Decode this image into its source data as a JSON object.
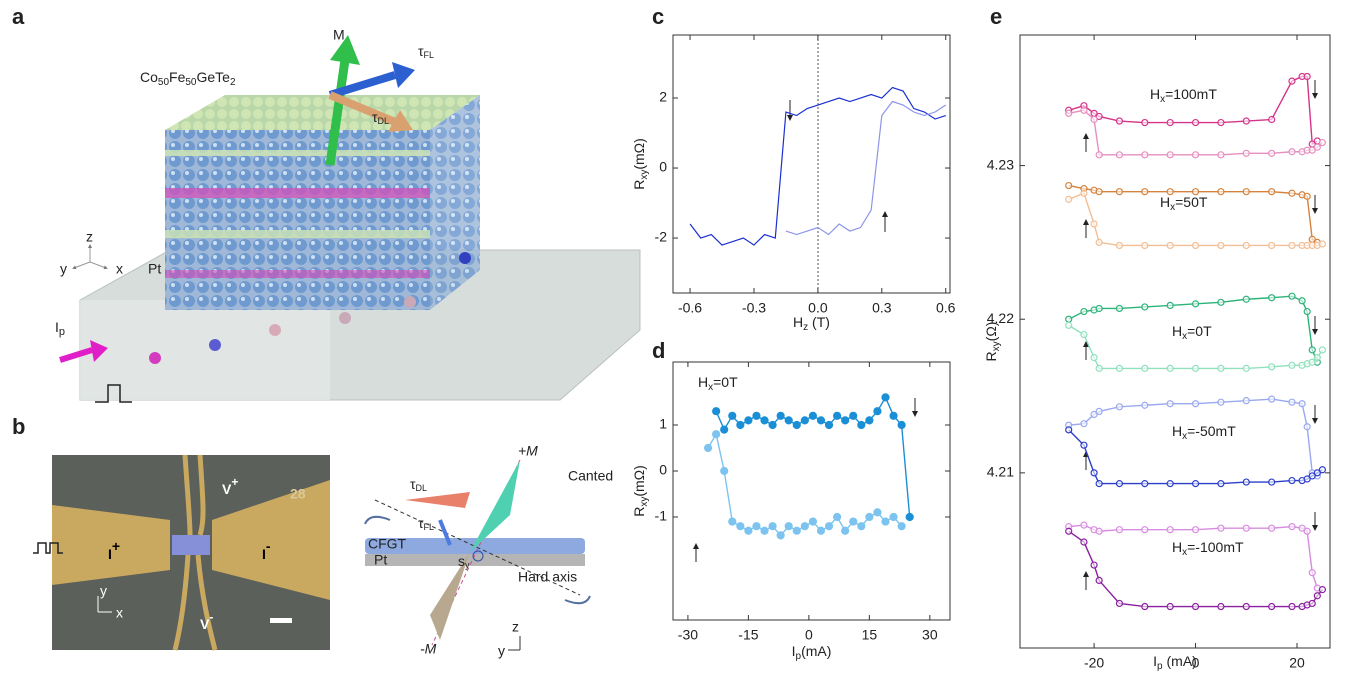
{
  "panel_labels": [
    "a",
    "b",
    "c",
    "d",
    "e"
  ],
  "panel_a": {
    "m": "M",
    "tau_fl": {
      "main": "τ",
      "sub": "FL"
    },
    "tau_dl": {
      "main": "τ",
      "sub": "DL"
    },
    "material": [
      "Co",
      "50",
      "Fe",
      "50",
      "GeTe",
      "2"
    ],
    "pt": "Pt",
    "axes": [
      "z",
      "y",
      "x"
    ],
    "current": {
      "main": "I",
      "sub": "p"
    }
  },
  "panel_b": {
    "device": {
      "v_plus": [
        "V",
        "+"
      ],
      "v_minus": [
        "V",
        "-"
      ],
      "i_plus": [
        "I",
        "+"
      ],
      "i_minus": [
        "I",
        "-"
      ],
      "number": "28",
      "axes": [
        "y",
        "x"
      ]
    },
    "schematic": {
      "plus_m": "+M",
      "canted": "Canted",
      "tau_dl": {
        "main": "τ",
        "sub": "DL"
      },
      "tau_fl": {
        "main": "τ",
        "sub": "FL"
      },
      "cfgt": "CFGT",
      "pt": "Pt",
      "s_y": {
        "main": "s",
        "sub": "y"
      },
      "hard_axis": "Hard axis",
      "minus_m": "-M",
      "axes": [
        "z",
        "y"
      ]
    }
  },
  "chart_data": [
    {
      "type": "line",
      "xlabel": {
        "main": "H",
        "sub": "z",
        "rest": " (T)"
      },
      "ylabel": {
        "main": "R",
        "sub": "xy",
        "rest": "(mΩ)"
      },
      "x": [
        -0.6,
        -0.55,
        -0.5,
        -0.45,
        -0.4,
        -0.35,
        -0.3,
        -0.25,
        -0.2,
        -0.15,
        -0.1,
        -0.05,
        0,
        0.05,
        0.1,
        0.15,
        0.2,
        0.25,
        0.3,
        0.35,
        0.4,
        0.45,
        0.5,
        0.55,
        0.6
      ],
      "series": [
        {
          "color": "#1b2fd2",
          "values": [
            -1.6,
            -2.0,
            -1.9,
            -2.2,
            -2.1,
            -2.0,
            -2.2,
            -1.9,
            -2.0,
            1.6,
            1.5,
            1.7,
            1.8,
            1.9,
            2.0,
            1.9,
            2.0,
            2.1,
            2.0,
            2.3,
            2.2,
            1.7,
            1.6,
            1.4,
            1.5
          ]
        },
        {
          "color": "#8c95ea",
          "values": [
            null,
            null,
            null,
            null,
            null,
            null,
            null,
            null,
            null,
            -1.8,
            -1.9,
            -1.8,
            -1.7,
            -1.9,
            -1.6,
            -1.8,
            -1.7,
            -1.2,
            1.5,
            1.9,
            1.8,
            1.6,
            1.5,
            1.6,
            1.8
          ]
        }
      ],
      "xlim": [
        -0.68,
        0.62
      ],
      "ylim": [
        -3.57,
        3.8
      ],
      "xticks": [
        -0.6,
        -0.3,
        {
          "value": 0,
          "label": "0.0"
        },
        0.3,
        0.6
      ],
      "yticks": [
        -2,
        0,
        2
      ]
    },
    {
      "type": "line",
      "marker": "filled-circle",
      "xlabel": {
        "main": "I",
        "sub": "p",
        "rest": "(mA)"
      },
      "ylabel": {
        "main": "R",
        "sub": "xy",
        "rest": "(mΩ)"
      },
      "annotations": [
        {
          "main": "H",
          "sub": "x",
          "rest": "=0T"
        }
      ],
      "x": [
        -25,
        -23,
        -21,
        -19,
        -17,
        -15,
        -13,
        -11,
        -9,
        -7,
        -5,
        -3,
        -1,
        1,
        3,
        5,
        7,
        9,
        11,
        13,
        15,
        17,
        19,
        21,
        23,
        25
      ],
      "series": [
        {
          "color": "#1a8fd6",
          "values": [
            null,
            1.3,
            0.9,
            1.2,
            1.0,
            1.1,
            1.2,
            1.1,
            1.0,
            1.2,
            1.1,
            1.0,
            1.1,
            1.2,
            1.1,
            1.0,
            1.2,
            1.1,
            1.2,
            1.0,
            1.1,
            1.3,
            1.6,
            1.2,
            1.0,
            -1.0
          ]
        },
        {
          "color": "#7cc4ef",
          "values": [
            0.5,
            0.8,
            0.0,
            -1.1,
            -1.2,
            -1.3,
            -1.2,
            -1.3,
            -1.2,
            -1.4,
            -1.2,
            -1.3,
            -1.2,
            -1.1,
            -1.3,
            -1.2,
            -1.0,
            -1.3,
            -1.1,
            -1.2,
            -1.0,
            -0.9,
            -1.1,
            -1.0,
            -1.2,
            null
          ]
        }
      ],
      "xlim": [
        -33.7,
        35
      ],
      "ylim": [
        -3.24,
        2.37
      ],
      "xticks": [
        -30,
        -15,
        0,
        15,
        30
      ],
      "yticks": [
        -1,
        0,
        1
      ]
    },
    {
      "type": "line",
      "marker": "open-circle",
      "xlabel": {
        "main": "I",
        "sub": "p",
        "rest": " (mA)"
      },
      "ylabel": {
        "main": "R",
        "sub": "xy",
        "rest": "(Ω)"
      },
      "annotations": [
        {
          "main": "H",
          "sub": "x",
          "rest": "=100mT"
        },
        {
          "main": "H",
          "sub": "x",
          "rest": "=50T"
        },
        {
          "main": "H",
          "sub": "x",
          "rest": "=0T"
        },
        {
          "main": "H",
          "sub": "x",
          "rest": "=-50mT"
        },
        {
          "main": "H",
          "sub": "x",
          "rest": "=-100mT"
        }
      ],
      "x": [
        -25,
        -22,
        -20,
        -19,
        -15,
        -10,
        -5,
        0,
        5,
        10,
        15,
        19,
        21,
        22,
        23,
        24,
        25
      ],
      "series": [
        {
          "color": "#d6338a",
          "values": [
            4.2336,
            4.2339,
            4.2334,
            4.2332,
            4.2329,
            4.2328,
            4.2328,
            4.2328,
            4.2328,
            4.2329,
            4.233,
            4.2355,
            4.2358,
            4.2358,
            4.2314,
            4.2316,
            null
          ]
        },
        {
          "color": "#e58fc0",
          "values": [
            4.2334,
            4.2336,
            4.233,
            4.2307,
            4.2307,
            4.2307,
            4.2307,
            4.2307,
            4.2307,
            4.2308,
            4.2308,
            4.2309,
            4.2309,
            4.231,
            4.231,
            4.2312,
            4.2315
          ]
        },
        {
          "color": "#d4823c",
          "values": [
            4.2287,
            4.2285,
            4.2284,
            4.2283,
            4.2283,
            4.2283,
            4.2283,
            4.2283,
            4.2283,
            4.2283,
            4.2283,
            4.2282,
            4.2281,
            4.228,
            4.2252,
            4.225,
            null
          ]
        },
        {
          "color": "#f2be94",
          "values": [
            4.2278,
            4.2282,
            4.2262,
            4.225,
            4.2248,
            4.2248,
            4.2248,
            4.2248,
            4.2248,
            4.2248,
            4.2248,
            4.2248,
            4.2248,
            4.2248,
            4.2248,
            4.2248,
            4.2249
          ]
        },
        {
          "color": "#2db37a",
          "values": [
            4.22,
            4.2205,
            4.2206,
            4.2207,
            4.2207,
            4.2208,
            4.2209,
            4.221,
            4.2211,
            4.2213,
            4.2214,
            4.2215,
            4.2212,
            4.2205,
            4.218,
            4.2172,
            null
          ]
        },
        {
          "color": "#8fe0bd",
          "values": [
            4.2196,
            4.219,
            4.2175,
            4.2168,
            4.2168,
            4.2168,
            4.2168,
            4.2168,
            4.2168,
            4.2168,
            4.2169,
            4.217,
            4.217,
            4.2171,
            4.2172,
            4.2175,
            4.218
          ]
        },
        {
          "color": "#9aa8ef",
          "values": [
            4.2131,
            4.2132,
            4.2138,
            4.214,
            4.2143,
            4.2144,
            4.2145,
            4.2145,
            4.2146,
            4.2147,
            4.2148,
            4.2146,
            4.2145,
            4.213,
            4.21,
            4.2098,
            null
          ]
        },
        {
          "color": "#2c3fc9",
          "values": [
            4.2128,
            4.2118,
            4.21,
            4.2093,
            4.2093,
            4.2093,
            4.2093,
            4.2093,
            4.2093,
            4.2094,
            4.2094,
            4.2095,
            4.2095,
            4.2096,
            4.2098,
            4.21,
            4.2102
          ]
        },
        {
          "color": "#d88ce0",
          "values": [
            4.2065,
            4.2066,
            4.2063,
            4.2062,
            4.2063,
            4.2063,
            4.2063,
            4.2063,
            4.2064,
            4.2064,
            4.2064,
            4.2065,
            4.2064,
            4.2062,
            4.2035,
            4.2025,
            null
          ]
        },
        {
          "color": "#8a1fa0",
          "values": [
            4.2062,
            4.2055,
            4.204,
            4.203,
            4.2015,
            4.2013,
            4.2013,
            4.2013,
            4.2013,
            4.2013,
            4.2013,
            4.2013,
            4.2013,
            4.2014,
            4.2015,
            4.202,
            4.2024
          ]
        }
      ],
      "xlim": [
        -34.6,
        26.5
      ],
      "ylim": [
        4.1986,
        4.2385
      ],
      "xticks": [
        -20,
        0,
        20
      ],
      "yticks": [
        4.21,
        4.22,
        4.23
      ]
    }
  ]
}
